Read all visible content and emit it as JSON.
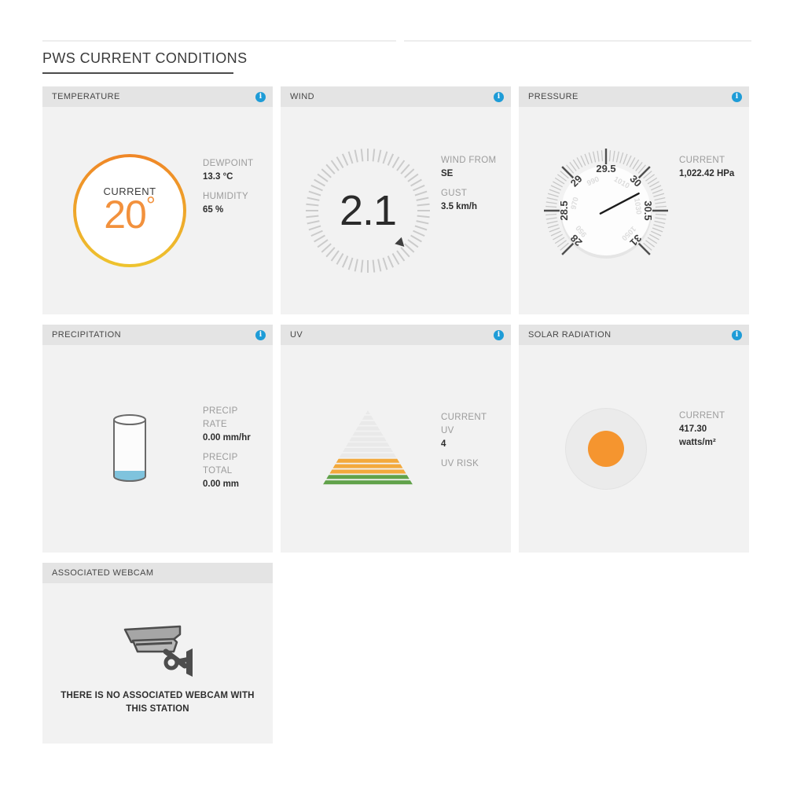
{
  "page": {
    "title": "PWS CURRENT CONDITIONS"
  },
  "colors": {
    "accent_blue": "#1e9cd7",
    "temp_gradient_top": "#ef8727",
    "temp_gradient_bottom": "#eec32e",
    "temp_text_orange": "#f2913d",
    "uv_gray": "#e9e9e9",
    "uv_orange": "#f3a93c",
    "uv_green": "#61a24a",
    "water_blue": "#7fc3dd",
    "sun_orange": "#f5952f"
  },
  "cards": {
    "temperature": {
      "header": "TEMPERATURE",
      "gauge": {
        "label": "CURRENT",
        "value": "20",
        "unit": "°"
      },
      "stats": [
        {
          "label": "DEWPOINT",
          "value": "13.3 °C"
        },
        {
          "label": "HUMIDITY",
          "value": "65 %"
        }
      ]
    },
    "wind": {
      "header": "WIND",
      "gauge": {
        "value": "2.1",
        "direction": "SE"
      },
      "stats": [
        {
          "label": "WIND FROM",
          "value": "SE"
        },
        {
          "label": "GUST",
          "value": "3.5 km/h"
        }
      ]
    },
    "pressure": {
      "header": "PRESSURE",
      "gauge": {
        "outer_labels": [
          "28",
          "28.5",
          "29",
          "29.5",
          "30",
          "30.5",
          "31"
        ],
        "inner_labels": [
          "950",
          "970",
          "990",
          "1010",
          "1030",
          "1050"
        ],
        "value_hpa": 1022.42
      },
      "stats": [
        {
          "label": "CURRENT",
          "value": "1,022.42 HPa"
        }
      ]
    },
    "precipitation": {
      "header": "PRECIPITATION",
      "stats": [
        {
          "label": "PRECIP\nRATE",
          "value": "0.00 mm/hr"
        },
        {
          "label": "PRECIP\nTOTAL",
          "value": "0.00 mm"
        }
      ]
    },
    "uv": {
      "header": "UV",
      "pyramid": {
        "gray_bands": 9,
        "orange_bands": 3,
        "green_bands": 2
      },
      "stats": [
        {
          "label": "CURRENT\nUV",
          "value": "4"
        },
        {
          "label": "UV RISK",
          "value": ""
        }
      ]
    },
    "solar": {
      "header": "SOLAR RADIATION",
      "stats": [
        {
          "label": "CURRENT",
          "value": "417.30\nwatts/m²"
        }
      ]
    },
    "webcam": {
      "header": "ASSOCIATED WEBCAM",
      "message": "THERE IS NO ASSOCIATED WEBCAM WITH THIS STATION"
    }
  }
}
